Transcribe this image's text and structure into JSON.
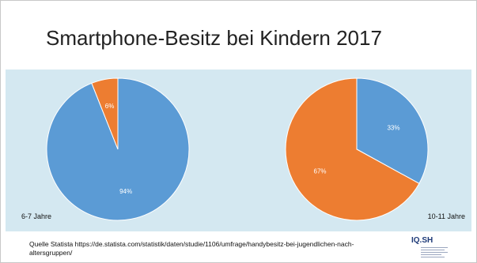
{
  "title": "Smartphone-Besitz bei Kindern 2017",
  "colors": {
    "band": "#d4e8f1",
    "blue": "#5b9bd5",
    "orange": "#ed7d31"
  },
  "chart_data": [
    {
      "type": "pie",
      "label": "6-7 Jahre",
      "slices": [
        {
          "label": "94%",
          "value": 94,
          "color": "#5b9bd5"
        },
        {
          "label": "6%",
          "value": 6,
          "color": "#ed7d31"
        }
      ]
    },
    {
      "type": "pie",
      "label": "10-11 Jahre",
      "slices": [
        {
          "label": "33%",
          "value": 33,
          "color": "#5b9bd5"
        },
        {
          "label": "67%",
          "value": 67,
          "color": "#ed7d31"
        }
      ]
    }
  ],
  "source": "Quelle Statista https://de.statista.com/statistik/daten/studie/1106/umfrage/handybesitz-bei-jugendlichen-nach-altersgruppen/",
  "logo": {
    "text": "IQ.SH",
    "icon": "iqsh-logo-icon"
  }
}
